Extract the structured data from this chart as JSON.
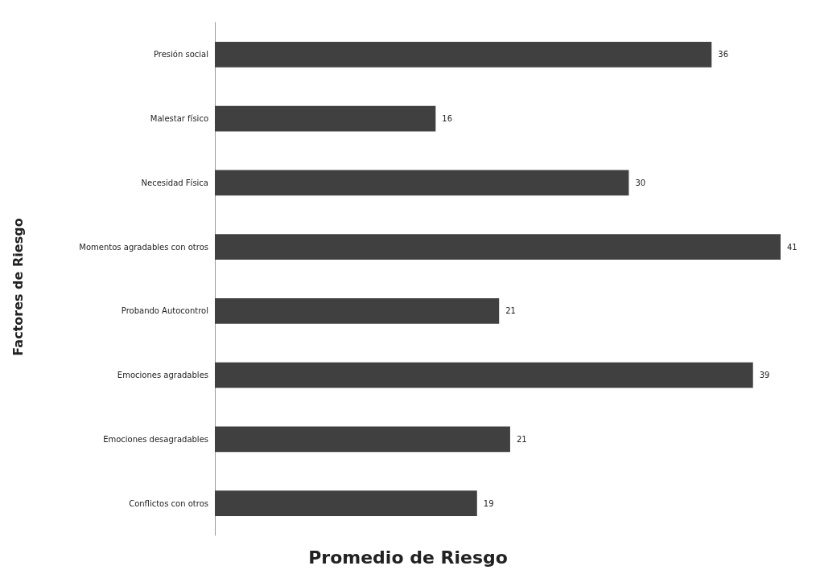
{
  "chart_data": {
    "type": "bar",
    "orientation": "horizontal",
    "xlabel": "Promedio de Riesgo",
    "ylabel": "Factores de Riesgo",
    "categories": [
      "Presión social",
      "Malestar físico",
      "Necesidad Física",
      "Momentos agradables con otros",
      "Probando Autocontrol",
      "Emociones agradables",
      "Emociones desagradables",
      "Conflictos con otros"
    ],
    "values": [
      36,
      16,
      30,
      41,
      20.6,
      39,
      21.4,
      19
    ],
    "value_labels": [
      "36",
      "16",
      "30",
      "41",
      "21",
      "39",
      "21",
      "19"
    ],
    "color": "#404040",
    "tick_labels": "y"
  }
}
